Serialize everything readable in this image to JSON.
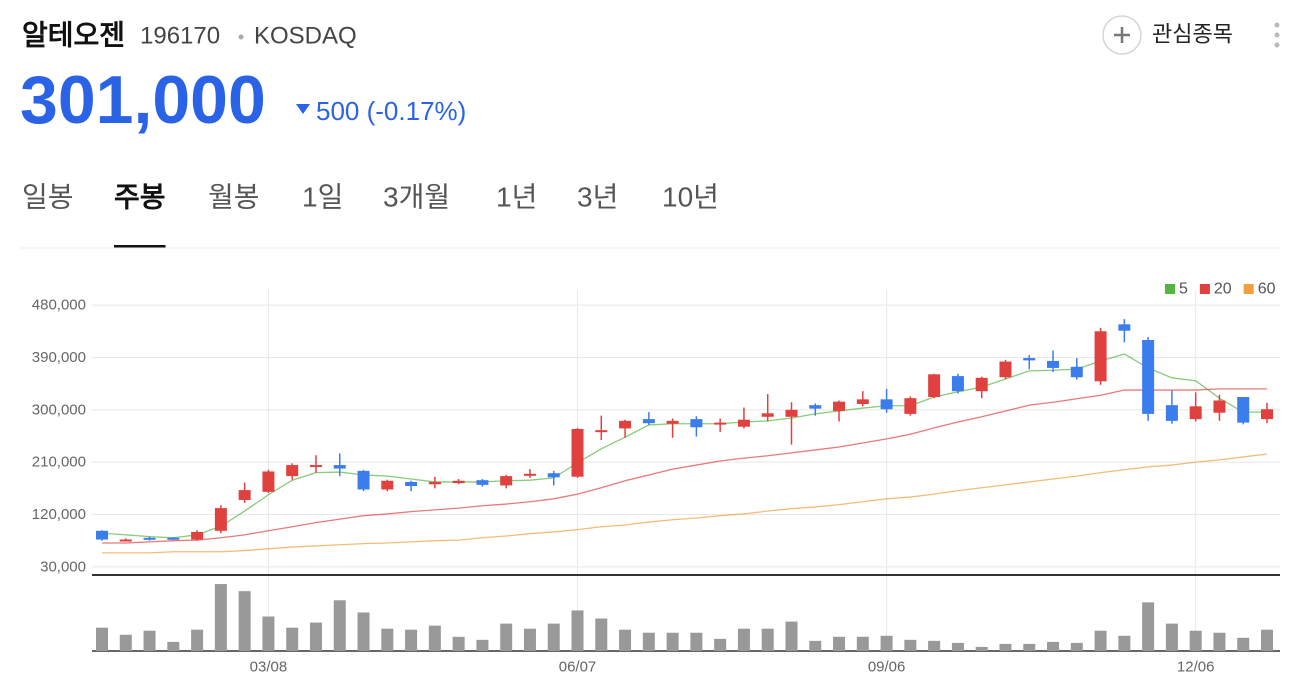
{
  "header": {
    "name": "알테오젠",
    "code": "196170",
    "market": "KOSDAQ",
    "price": "301,000",
    "change": "500 (-0.17%)",
    "watch_button": "관심종목"
  },
  "tabs": {
    "items": [
      "일봉",
      "주봉",
      "월봉",
      "1일",
      "3개월",
      "1년",
      "3년",
      "10년"
    ],
    "selected": 1
  },
  "chart_data": {
    "type": "candlestick",
    "categories": [
      null,
      null,
      null,
      null,
      null,
      null,
      null,
      "03/08",
      null,
      null,
      null,
      null,
      null,
      null,
      null,
      null,
      null,
      null,
      null,
      null,
      "06/07",
      null,
      null,
      null,
      null,
      null,
      null,
      null,
      null,
      null,
      null,
      null,
      null,
      "09/06",
      null,
      null,
      null,
      null,
      null,
      null,
      null,
      null,
      null,
      null,
      null,
      null,
      "12/06",
      null,
      null,
      null
    ],
    "open": [
      92000,
      75000,
      80000,
      80000,
      77000,
      92000,
      145000,
      159000,
      186000,
      202000,
      205000,
      195000,
      163000,
      176000,
      172000,
      174000,
      179000,
      170000,
      187000,
      191000,
      185000,
      262000,
      268000,
      284000,
      276000,
      284000,
      275000,
      271000,
      288000,
      288000,
      308000,
      298000,
      310000,
      318000,
      293000,
      322000,
      358000,
      332000,
      356000,
      389000,
      384000,
      374000,
      349000,
      447000,
      420000,
      308000,
      284000,
      295000,
      322000,
      284000
    ],
    "high": [
      93000,
      79000,
      82000,
      81000,
      93000,
      136000,
      175000,
      197000,
      208000,
      222000,
      225000,
      197000,
      180000,
      178000,
      185000,
      181000,
      181000,
      188000,
      198000,
      195000,
      269000,
      290000,
      283000,
      296000,
      285000,
      289000,
      285000,
      304000,
      327000,
      313000,
      311000,
      316000,
      332000,
      336000,
      323000,
      362000,
      362000,
      357000,
      386000,
      394000,
      402000,
      389000,
      441000,
      456000,
      425000,
      333000,
      330000,
      326000,
      322000,
      312000
    ],
    "low": [
      75000,
      74000,
      75000,
      77000,
      75000,
      88000,
      140000,
      157000,
      180000,
      192000,
      186000,
      160000,
      160000,
      160000,
      165000,
      172000,
      168000,
      165000,
      183000,
      170000,
      183000,
      248000,
      252000,
      274000,
      252000,
      254000,
      262000,
      268000,
      280000,
      240000,
      290000,
      280000,
      306000,
      295000,
      290000,
      320000,
      328000,
      320000,
      353000,
      370000,
      365000,
      352000,
      343000,
      416000,
      281000,
      276000,
      280000,
      281000,
      275000,
      277000
    ],
    "close": [
      77000,
      77000,
      78000,
      78000,
      90000,
      131000,
      162000,
      194000,
      205000,
      205000,
      199000,
      163000,
      178000,
      169000,
      176000,
      178000,
      171000,
      186000,
      190000,
      184000,
      267000,
      265000,
      281000,
      277000,
      281000,
      270000,
      278000,
      283000,
      294000,
      300000,
      302000,
      314000,
      318000,
      301000,
      320000,
      361000,
      332000,
      355000,
      383000,
      385000,
      372000,
      356000,
      435000,
      436000,
      293000,
      281000,
      306000,
      316000,
      278000,
      301000
    ],
    "up_color": "#e0413f",
    "down_color": "#3b7ded",
    "series": [
      {
        "name": "5",
        "color": "#52b640",
        "values": [
          88000,
          85000,
          82000,
          80000,
          85000,
          100000,
          126000,
          154000,
          179000,
          192000,
          193000,
          188000,
          186000,
          181000,
          176000,
          176000,
          176000,
          178000,
          179000,
          183000,
          209000,
          233000,
          253000,
          274000,
          276000,
          276000,
          276000,
          279000,
          281000,
          286000,
          293000,
          298000,
          303000,
          307000,
          307000,
          322000,
          331000,
          339000,
          353000,
          367000,
          368000,
          370000,
          384000,
          396000,
          372000,
          355000,
          350000,
          320000,
          296000,
          296000
        ]
      },
      {
        "name": "20",
        "color": "#e0413f",
        "values": [
          71000,
          71000,
          73000,
          75000,
          76000,
          80000,
          85000,
          92000,
          99000,
          106000,
          112000,
          118000,
          121000,
          125000,
          128000,
          131000,
          135000,
          138000,
          142000,
          147000,
          155000,
          166000,
          178000,
          188000,
          198000,
          205000,
          212000,
          217000,
          221000,
          226000,
          231000,
          236000,
          243000,
          250000,
          258000,
          269000,
          279000,
          288000,
          298000,
          308000,
          313000,
          319000,
          325000,
          334000,
          334000,
          334000,
          334000,
          336000,
          336000,
          336000
        ]
      },
      {
        "name": "60",
        "color": "#f0a040",
        "values": [
          54000,
          54000,
          54000,
          56000,
          56000,
          56000,
          58000,
          61000,
          64000,
          66000,
          68000,
          70000,
          71000,
          73000,
          75000,
          76000,
          80000,
          83000,
          87000,
          90000,
          94000,
          99000,
          102000,
          107000,
          111000,
          114000,
          118000,
          121000,
          126000,
          130000,
          133000,
          137000,
          142000,
          147000,
          150000,
          155000,
          161000,
          166000,
          171000,
          176000,
          181000,
          186000,
          192000,
          197000,
          202000,
          205000,
          210000,
          214000,
          219000,
          224000
        ]
      }
    ],
    "ylim": [
      16000,
      506000
    ],
    "yticks": [
      {
        "value": 30000,
        "label": "30,000"
      },
      {
        "value": 120000,
        "label": "120,000"
      },
      {
        "value": 210000,
        "label": "210,000"
      },
      {
        "value": 300000,
        "label": "300,000"
      },
      {
        "value": 390000,
        "label": "390,000"
      },
      {
        "value": 480000,
        "label": "480,000"
      }
    ],
    "grid": true,
    "legend": "top-right",
    "volume": {
      "color": "#999999",
      "ylim": [
        0,
        70
      ],
      "values": [
        23,
        16,
        20,
        9,
        21,
        66,
        59,
        34,
        23,
        28,
        50,
        38,
        22,
        21,
        25,
        14,
        11,
        27,
        22,
        27,
        40,
        32,
        21,
        18,
        18,
        18,
        12,
        22,
        22,
        29,
        10,
        14,
        14,
        15,
        11,
        10,
        8,
        4,
        7,
        7,
        9,
        8,
        20,
        15,
        48,
        27,
        20,
        18,
        13,
        21
      ]
    }
  }
}
